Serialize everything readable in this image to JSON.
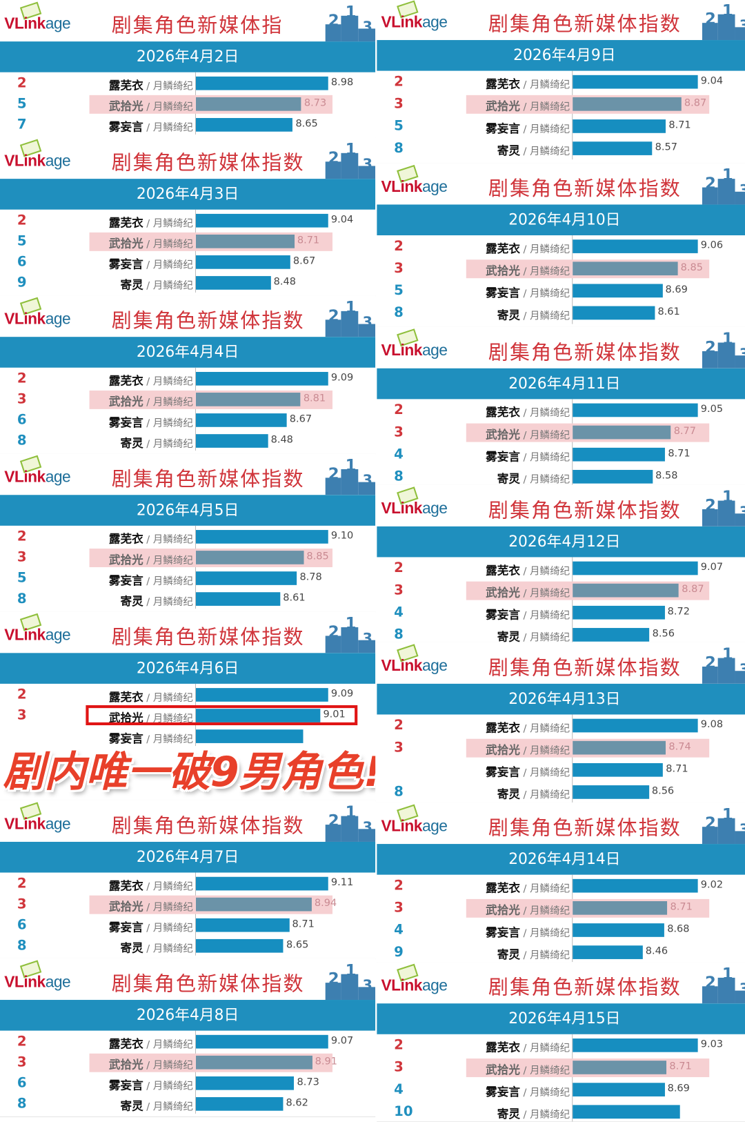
{
  "logo": {
    "brand_a": "VLink",
    "brand_b": "age"
  },
  "title": "剧集角色新媒体指数",
  "title_truncated": "剧集角色新媒体指",
  "overlay_text": "剧内唯一破9男角色!",
  "colors": {
    "date_bar": "#1f8fbe",
    "bar": "#168ec0",
    "bar_highlight": "#6b93a8",
    "highlight_band": "#f6d0d2",
    "rank_top": "#d0353b",
    "rank_other": "#1f8fbe",
    "title": "#d0353b"
  },
  "chart_data": {
    "type": "bar",
    "orientation": "horizontal",
    "panels": [
      {
        "date": "2026年4月2日",
        "rows": [
          {
            "rank": "2",
            "name": "露芜衣",
            "drama": "月鳞绮纪",
            "value": 8.98
          },
          {
            "rank": "5",
            "name": "武拾光",
            "drama": "月鳞绮纪",
            "value": 8.73,
            "highlight": true
          },
          {
            "rank": "7",
            "name": "雾妄言",
            "drama": "月鳞绮纪",
            "value": 8.65
          }
        ]
      },
      {
        "date": "2026年4月3日",
        "rows": [
          {
            "rank": "2",
            "name": "露芜衣",
            "drama": "月鳞绮纪",
            "value": 9.04
          },
          {
            "rank": "5",
            "name": "武拾光",
            "drama": "月鳞绮纪",
            "value": 8.71,
            "highlight": true
          },
          {
            "rank": "6",
            "name": "雾妄言",
            "drama": "月鳞绮纪",
            "value": 8.67
          },
          {
            "rank": "9",
            "name": "寄灵",
            "drama": "月鳞绮纪",
            "value": 8.48
          }
        ]
      },
      {
        "date": "2026年4月4日",
        "rows": [
          {
            "rank": "2",
            "name": "露芜衣",
            "drama": "月鳞绮纪",
            "value": 9.09
          },
          {
            "rank": "3",
            "name": "武拾光",
            "drama": "月鳞绮纪",
            "value": 8.81,
            "highlight": true
          },
          {
            "rank": "6",
            "name": "雾妄言",
            "drama": "月鳞绮纪",
            "value": 8.67
          },
          {
            "rank": "8",
            "name": "寄灵",
            "drama": "月鳞绮纪",
            "value": 8.48
          }
        ]
      },
      {
        "date": "2026年4月5日",
        "rows": [
          {
            "rank": "2",
            "name": "露芜衣",
            "drama": "月鳞绮纪",
            "value": 9.1
          },
          {
            "rank": "3",
            "name": "武拾光",
            "drama": "月鳞绮纪",
            "value": 8.85,
            "highlight": true
          },
          {
            "rank": "5",
            "name": "雾妄言",
            "drama": "月鳞绮纪",
            "value": 8.78
          },
          {
            "rank": "8",
            "name": "寄灵",
            "drama": "月鳞绮纪",
            "value": 8.61
          }
        ]
      },
      {
        "date": "2026年4月6日",
        "rows": [
          {
            "rank": "2",
            "name": "露芜衣",
            "drama": "月鳞绮纪",
            "value": 9.09
          },
          {
            "rank": "3",
            "name": "武拾光",
            "drama": "月鳞绮纪",
            "value": 9.01,
            "boxed": true
          },
          {
            "rank": "",
            "name": "雾妄言",
            "drama": "月鳞绮纪",
            "value": null
          }
        ]
      },
      {
        "date": "2026年4月7日",
        "rows": [
          {
            "rank": "2",
            "name": "露芜衣",
            "drama": "月鳞绮纪",
            "value": 9.11
          },
          {
            "rank": "3",
            "name": "武拾光",
            "drama": "月鳞绮纪",
            "value": 8.94,
            "highlight": true
          },
          {
            "rank": "6",
            "name": "雾妄言",
            "drama": "月鳞绮纪",
            "value": 8.71
          },
          {
            "rank": "8",
            "name": "寄灵",
            "drama": "月鳞绮纪",
            "value": 8.65
          }
        ]
      },
      {
        "date": "2026年4月8日",
        "rows": [
          {
            "rank": "2",
            "name": "露芜衣",
            "drama": "月鳞绮纪",
            "value": 9.07
          },
          {
            "rank": "3",
            "name": "武拾光",
            "drama": "月鳞绮纪",
            "value": 8.91,
            "highlight": true
          },
          {
            "rank": "6",
            "name": "雾妄言",
            "drama": "月鳞绮纪",
            "value": 8.73
          },
          {
            "rank": "8",
            "name": "寄灵",
            "drama": "月鳞绮纪",
            "value": 8.62
          }
        ]
      },
      {
        "date": "2026年4月9日",
        "rows": [
          {
            "rank": "2",
            "name": "露芜衣",
            "drama": "月鳞绮纪",
            "value": 9.04
          },
          {
            "rank": "3",
            "name": "武拾光",
            "drama": "月鳞绮纪",
            "value": 8.87,
            "highlight": true
          },
          {
            "rank": "5",
            "name": "雾妄言",
            "drama": "月鳞绮纪",
            "value": 8.71
          },
          {
            "rank": "8",
            "name": "寄灵",
            "drama": "月鳞绮纪",
            "value": 8.57
          }
        ]
      },
      {
        "date": "2026年4月10日",
        "rows": [
          {
            "rank": "2",
            "name": "露芜衣",
            "drama": "月鳞绮纪",
            "value": 9.06
          },
          {
            "rank": "3",
            "name": "武拾光",
            "drama": "月鳞绮纪",
            "value": 8.85,
            "highlight": true
          },
          {
            "rank": "5",
            "name": "雾妄言",
            "drama": "月鳞绮纪",
            "value": 8.69
          },
          {
            "rank": "8",
            "name": "寄灵",
            "drama": "月鳞绮纪",
            "value": 8.61
          }
        ]
      },
      {
        "date": "2026年4月11日",
        "rows": [
          {
            "rank": "2",
            "name": "露芜衣",
            "drama": "月鳞绮纪",
            "value": 9.05
          },
          {
            "rank": "3",
            "name": "武拾光",
            "drama": "月鳞绮纪",
            "value": 8.77,
            "highlight": true
          },
          {
            "rank": "4",
            "name": "雾妄言",
            "drama": "月鳞绮纪",
            "value": 8.71
          },
          {
            "rank": "8",
            "name": "寄灵",
            "drama": "月鳞绮纪",
            "value": 8.58
          }
        ]
      },
      {
        "date": "2026年4月12日",
        "rows": [
          {
            "rank": "2",
            "name": "露芜衣",
            "drama": "月鳞绮纪",
            "value": 9.07
          },
          {
            "rank": "3",
            "name": "武拾光",
            "drama": "月鳞绮纪",
            "value": 8.87,
            "highlight": true
          },
          {
            "rank": "4",
            "name": "雾妄言",
            "drama": "月鳞绮纪",
            "value": 8.72
          },
          {
            "rank": "8",
            "name": "寄灵",
            "drama": "月鳞绮纪",
            "value": 8.56
          }
        ]
      },
      {
        "date": "2026年4月13日",
        "rows": [
          {
            "rank": "2",
            "name": "露芜衣",
            "drama": "月鳞绮纪",
            "value": 9.08
          },
          {
            "rank": "3",
            "name": "武拾光",
            "drama": "月鳞绮纪",
            "value": 8.74,
            "highlight": true
          },
          {
            "rank": "",
            "name": "雾妄言",
            "drama": "月鳞绮纪",
            "value": 8.71
          },
          {
            "rank": "8",
            "name": "寄灵",
            "drama": "月鳞绮纪",
            "value": 8.56
          }
        ]
      },
      {
        "date": "2026年4月14日",
        "rows": [
          {
            "rank": "2",
            "name": "露芜衣",
            "drama": "月鳞绮纪",
            "value": 9.02
          },
          {
            "rank": "3",
            "name": "武拾光",
            "drama": "月鳞绮纪",
            "value": 8.71,
            "highlight": true
          },
          {
            "rank": "4",
            "name": "雾妄言",
            "drama": "月鳞绮纪",
            "value": 8.68
          },
          {
            "rank": "9",
            "name": "寄灵",
            "drama": "月鳞绮纪",
            "value": 8.46
          }
        ]
      },
      {
        "date": "2026年4月15日",
        "rows": [
          {
            "rank": "2",
            "name": "露芜衣",
            "drama": "月鳞绮纪",
            "value": 9.03
          },
          {
            "rank": "3",
            "name": "武拾光",
            "drama": "月鳞绮纪",
            "value": 8.71,
            "highlight": true
          },
          {
            "rank": "4",
            "name": "雾妄言",
            "drama": "月鳞绮纪",
            "value": 8.69
          },
          {
            "rank": "10",
            "name": "寄灵",
            "drama": "月鳞绮纪",
            "value": null
          }
        ]
      }
    ]
  }
}
